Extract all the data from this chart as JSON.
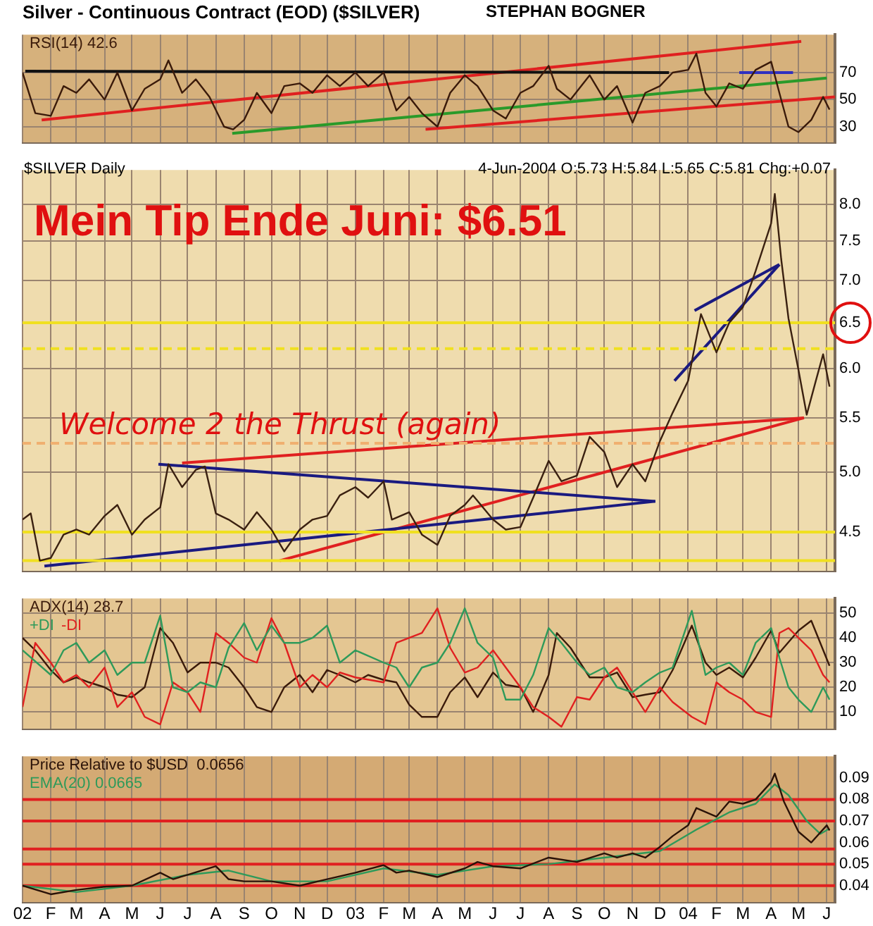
{
  "chart_data": [
    {
      "type": "line",
      "title": "Silver - Continuous Contract (EOD) ($SILVER)",
      "annotations": [
        "STEPHAN BOGNER"
      ],
      "legend": "top left",
      "grid": true,
      "marker": "none",
      "tick_labels": "y",
      "xlim": [
        "2002-01-01",
        "2004-06-10"
      ],
      "ylim": [
        18,
        98
      ],
      "yticks": [
        30,
        50,
        70
      ],
      "xticks": [
        {
          "value": "2002-01",
          "label": null
        },
        {
          "value": "2002-02",
          "label": null
        },
        {
          "value": "2002-03",
          "label": null
        },
        {
          "value": "2002-04",
          "label": null
        },
        {
          "value": "2002-05",
          "label": null
        },
        {
          "value": "2002-06",
          "label": null
        },
        {
          "value": "2002-07",
          "label": null
        },
        {
          "value": "2002-08",
          "label": null
        },
        {
          "value": "2002-09",
          "label": null
        },
        {
          "value": "2002-10",
          "label": null
        },
        {
          "value": "2002-11",
          "label": null
        },
        {
          "value": "2002-12",
          "label": null
        },
        {
          "value": "2003-01",
          "label": null
        },
        {
          "value": "2003-02",
          "label": null
        },
        {
          "value": "2003-03",
          "label": null
        },
        {
          "value": "2003-04",
          "label": null
        },
        {
          "value": "2003-05",
          "label": null
        },
        {
          "value": "2003-06",
          "label": null
        },
        {
          "value": "2003-07",
          "label": null
        },
        {
          "value": "2003-08",
          "label": null
        },
        {
          "value": "2003-09",
          "label": null
        },
        {
          "value": "2003-10",
          "label": null
        },
        {
          "value": "2003-11",
          "label": null
        },
        {
          "value": "2003-12",
          "label": null
        },
        {
          "value": "2004-01",
          "label": null
        },
        {
          "value": "2004-02",
          "label": null
        },
        {
          "value": "2004-03",
          "label": null
        },
        {
          "value": "2004-04",
          "label": null
        },
        {
          "value": "2004-05",
          "label": null
        },
        {
          "value": "2004-06",
          "label": null
        }
      ],
      "series": [
        {
          "name": "RSI(14) 42.6",
          "color": "#3a1a0a",
          "type": "line",
          "x": [
            "2002-01-01",
            "2002-01-15",
            "2002-02-01",
            "2002-02-15",
            "2002-03-01",
            "2002-03-15",
            "2002-04-01",
            "2002-04-15",
            "2002-05-01",
            "2002-05-15",
            "2002-06-01",
            "2002-06-10",
            "2002-06-25",
            "2002-07-10",
            "2002-07-25",
            "2002-08-10",
            "2002-08-20",
            "2002-09-01",
            "2002-09-15",
            "2002-10-01",
            "2002-10-15",
            "2002-11-01",
            "2002-11-15",
            "2002-12-01",
            "2002-12-15",
            "2003-01-01",
            "2003-01-15",
            "2003-02-01",
            "2003-02-15",
            "2003-03-01",
            "2003-03-15",
            "2003-04-01",
            "2003-04-15",
            "2003-05-01",
            "2003-05-15",
            "2003-06-01",
            "2003-06-15",
            "2003-07-01",
            "2003-07-15",
            "2003-08-01",
            "2003-08-10",
            "2003-08-25",
            "2003-09-15",
            "2003-10-01",
            "2003-10-15",
            "2003-11-01",
            "2003-11-15",
            "2003-12-01",
            "2003-12-15",
            "2004-01-01",
            "2004-01-10",
            "2004-01-20",
            "2004-02-01",
            "2004-02-15",
            "2004-03-01",
            "2004-03-15",
            "2004-04-01",
            "2004-04-10",
            "2004-04-20",
            "2004-05-01",
            "2004-05-15",
            "2004-05-28",
            "2004-06-04"
          ],
          "values": [
            70,
            40,
            38,
            60,
            55,
            65,
            50,
            70,
            42,
            58,
            65,
            79,
            55,
            65,
            52,
            30,
            28,
            35,
            55,
            40,
            60,
            62,
            55,
            68,
            60,
            70,
            60,
            70,
            42,
            52,
            40,
            30,
            55,
            68,
            60,
            42,
            36,
            55,
            60,
            75,
            58,
            50,
            68,
            50,
            60,
            33,
            55,
            60,
            70,
            72,
            84,
            55,
            45,
            62,
            58,
            72,
            78,
            55,
            30,
            26,
            35,
            52,
            42.6
          ]
        },
        {
          "color": "#111111",
          "type": "line",
          "x": [
            "2002-01-04",
            "2003-12-11"
          ],
          "values": [
            71,
            70
          ]
        },
        {
          "color": "#3030c0",
          "type": "line",
          "x": [
            "2004-02-26",
            "2004-04-25"
          ],
          "values": [
            70,
            70
          ]
        },
        {
          "color": "#e02020",
          "type": "line",
          "x": [
            "2002-01-22",
            "2004-05-04"
          ],
          "values": [
            35,
            93
          ]
        },
        {
          "color": "#2a9a2a",
          "type": "line",
          "x": [
            "2002-08-19",
            "2004-06-01"
          ],
          "values": [
            25,
            66
          ]
        },
        {
          "color": "#e02020",
          "type": "line",
          "x": [
            "2003-03-19",
            "2004-06-10"
          ],
          "values": [
            28,
            52
          ]
        }
      ]
    },
    {
      "type": "line",
      "title": "$SILVER Daily",
      "subtitle": "4-Jun-2004 O:5.73 H:5.84 L:5.65 C:5.81 Chg:+0.07",
      "annotations": [
        "Mein Tip Ende Juni: $6.51",
        "Welcome 2 the Thrust (again)"
      ],
      "grid": true,
      "marker": "none",
      "log": true,
      "tick_labels": "y",
      "xlim": [
        "2002-01-01",
        "2004-06-10"
      ],
      "ylim": [
        4.22,
        8.5
      ],
      "yticks": [
        {
          "value": 4.5,
          "label": "4.5"
        },
        {
          "value": 5,
          "label": "5.0"
        },
        {
          "value": 5.5,
          "label": "5.5"
        },
        {
          "value": 6,
          "label": "6.0"
        },
        {
          "value": 6.5,
          "label": "6.5"
        },
        {
          "value": 7,
          "label": "7.0"
        },
        {
          "value": 7.5,
          "label": "7.5"
        },
        {
          "value": 8,
          "label": "8.0"
        }
      ],
      "xticks": [
        {
          "value": "2002-01",
          "label": null
        },
        {
          "value": "2002-02",
          "label": null
        },
        {
          "value": "2002-03",
          "label": null
        },
        {
          "value": "2002-04",
          "label": null
        },
        {
          "value": "2002-05",
          "label": null
        },
        {
          "value": "2002-06",
          "label": null
        },
        {
          "value": "2002-07",
          "label": null
        },
        {
          "value": "2002-08",
          "label": null
        },
        {
          "value": "2002-09",
          "label": null
        },
        {
          "value": "2002-10",
          "label": null
        },
        {
          "value": "2002-11",
          "label": null
        },
        {
          "value": "2002-12",
          "label": null
        },
        {
          "value": "2003-01",
          "label": null
        },
        {
          "value": "2003-02",
          "label": null
        },
        {
          "value": "2003-03",
          "label": null
        },
        {
          "value": "2003-04",
          "label": null
        },
        {
          "value": "2003-05",
          "label": null
        },
        {
          "value": "2003-06",
          "label": null
        },
        {
          "value": "2003-07",
          "label": null
        },
        {
          "value": "2003-08",
          "label": null
        },
        {
          "value": "2003-09",
          "label": null
        },
        {
          "value": "2003-10",
          "label": null
        },
        {
          "value": "2003-11",
          "label": null
        },
        {
          "value": "2003-12",
          "label": null
        },
        {
          "value": "2004-01",
          "label": null
        },
        {
          "value": "2004-02",
          "label": null
        },
        {
          "value": "2004-03",
          "label": null
        },
        {
          "value": "2004-04",
          "label": null
        },
        {
          "value": "2004-05",
          "label": null
        },
        {
          "value": "2004-06",
          "label": null
        }
      ],
      "series": [
        {
          "color": "#f0e020",
          "type": "line",
          "x": [
            "2002-01-01",
            "2004-06-10"
          ],
          "values": [
            6.5,
            6.5
          ]
        },
        {
          "color": "#f0e020",
          "type": "line",
          "line_style": "dashed",
          "x": [
            "2002-01-01",
            "2004-06-10"
          ],
          "values": [
            6.21,
            6.21
          ]
        },
        {
          "color": "#f0b070",
          "type": "line",
          "line_style": "dashed",
          "x": [
            "2002-01-01",
            "2004-06-10"
          ],
          "values": [
            5.26,
            5.26
          ]
        },
        {
          "color": "#f0e020",
          "type": "line",
          "x": [
            "2002-01-01",
            "2004-06-10"
          ],
          "values": [
            4.5,
            4.5
          ]
        },
        {
          "color": "#f0e020",
          "type": "line",
          "x": [
            "2002-01-01",
            "2004-06-10"
          ],
          "values": [
            4.28,
            4.28
          ]
        },
        {
          "color": "#3a2010",
          "type": "line",
          "x": [
            "2002-01-01",
            "2002-01-10",
            "2002-01-20",
            "2002-02-01",
            "2002-02-15",
            "2002-03-01",
            "2002-03-15",
            "2002-04-01",
            "2002-04-15",
            "2002-05-01",
            "2002-05-15",
            "2002-06-01",
            "2002-06-10",
            "2002-06-25",
            "2002-07-10",
            "2002-07-20",
            "2002-08-01",
            "2002-08-15",
            "2002-09-01",
            "2002-09-15",
            "2002-10-01",
            "2002-10-15",
            "2002-11-01",
            "2002-11-15",
            "2002-12-01",
            "2002-12-15",
            "2003-01-01",
            "2003-01-15",
            "2003-02-01",
            "2003-02-10",
            "2003-03-01",
            "2003-03-15",
            "2003-04-01",
            "2003-04-15",
            "2003-05-01",
            "2003-05-10",
            "2003-06-01",
            "2003-06-15",
            "2003-07-01",
            "2003-07-15",
            "2003-08-01",
            "2003-08-15",
            "2003-09-01",
            "2003-09-15",
            "2003-10-01",
            "2003-10-15",
            "2003-11-01",
            "2003-11-15",
            "2003-12-01",
            "2003-12-15",
            "2004-01-01",
            "2004-01-15",
            "2004-02-01",
            "2004-02-15",
            "2004-03-01",
            "2004-03-15",
            "2004-04-01",
            "2004-04-05",
            "2004-04-12",
            "2004-04-20",
            "2004-05-01",
            "2004-05-10",
            "2004-05-20",
            "2004-05-28",
            "2004-06-04"
          ],
          "values": [
            4.6,
            4.65,
            4.28,
            4.3,
            4.48,
            4.52,
            4.48,
            4.63,
            4.72,
            4.48,
            4.6,
            4.7,
            5.07,
            4.87,
            5.02,
            5.05,
            4.65,
            4.6,
            4.52,
            4.66,
            4.52,
            4.35,
            4.52,
            4.6,
            4.63,
            4.8,
            4.87,
            4.78,
            4.92,
            4.6,
            4.66,
            4.48,
            4.4,
            4.63,
            4.72,
            4.8,
            4.6,
            4.52,
            4.54,
            4.78,
            5.1,
            4.92,
            4.97,
            5.32,
            5.18,
            4.87,
            5.07,
            4.92,
            5.28,
            5.55,
            5.87,
            6.6,
            6.17,
            6.5,
            6.68,
            7.12,
            7.74,
            8.15,
            7.27,
            6.55,
            5.98,
            5.53,
            5.87,
            6.15,
            5.81
          ]
        },
        {
          "color": "#1a1a80",
          "type": "line",
          "x": [
            "2002-01-25",
            "2003-11-26"
          ],
          "values": [
            4.24,
            4.75
          ]
        },
        {
          "color": "#1a1a80",
          "type": "line",
          "x": [
            "2002-05-30",
            "2003-11-26"
          ],
          "values": [
            5.07,
            4.75
          ]
        },
        {
          "color": "#e02020",
          "type": "line",
          "x": [
            "2002-06-25",
            "2004-05-07"
          ],
          "values": [
            5.08,
            5.5
          ]
        },
        {
          "color": "#e02020",
          "type": "line",
          "x": [
            "2002-10-10",
            "2004-05-07"
          ],
          "values": [
            4.28,
            5.5
          ]
        },
        {
          "color": "#1a1a80",
          "type": "line",
          "x": [
            "2004-01-08",
            "2004-04-10"
          ],
          "values": [
            6.64,
            7.2
          ]
        },
        {
          "color": "#1a1a80",
          "type": "line",
          "x": [
            "2003-12-17",
            "2004-04-10"
          ],
          "values": [
            5.87,
            7.2
          ]
        }
      ]
    },
    {
      "type": "line",
      "legend": "top left",
      "grid": true,
      "marker": "none",
      "tick_labels": "y",
      "xlim": [
        "2002-01-01",
        "2004-06-10"
      ],
      "ylim": [
        3,
        56
      ],
      "yticks": [
        10,
        20,
        30,
        40,
        50
      ],
      "xticks": [
        {
          "value": "2002-01",
          "label": null
        },
        {
          "value": "2002-02",
          "label": null
        },
        {
          "value": "2002-03",
          "label": null
        },
        {
          "value": "2002-04",
          "label": null
        },
        {
          "value": "2002-05",
          "label": null
        },
        {
          "value": "2002-06",
          "label": null
        },
        {
          "value": "2002-07",
          "label": null
        },
        {
          "value": "2002-08",
          "label": null
        },
        {
          "value": "2002-09",
          "label": null
        },
        {
          "value": "2002-10",
          "label": null
        },
        {
          "value": "2002-11",
          "label": null
        },
        {
          "value": "2002-12",
          "label": null
        },
        {
          "value": "2003-01",
          "label": null
        },
        {
          "value": "2003-02",
          "label": null
        },
        {
          "value": "2003-03",
          "label": null
        },
        {
          "value": "2003-04",
          "label": null
        },
        {
          "value": "2003-05",
          "label": null
        },
        {
          "value": "2003-06",
          "label": null
        },
        {
          "value": "2003-07",
          "label": null
        },
        {
          "value": "2003-08",
          "label": null
        },
        {
          "value": "2003-09",
          "label": null
        },
        {
          "value": "2003-10",
          "label": null
        },
        {
          "value": "2003-11",
          "label": null
        },
        {
          "value": "2003-12",
          "label": null
        },
        {
          "value": "2004-01",
          "label": null
        },
        {
          "value": "2004-02",
          "label": null
        },
        {
          "value": "2004-03",
          "label": null
        },
        {
          "value": "2004-04",
          "label": null
        },
        {
          "value": "2004-05",
          "label": null
        },
        {
          "value": "2004-06",
          "label": null
        }
      ],
      "series": [
        {
          "name": "+DI",
          "color": "#2e9a5a",
          "type": "line",
          "x": [
            "2002-01-01",
            "2002-02-01",
            "2002-02-15",
            "2002-03-01",
            "2002-03-15",
            "2002-04-01",
            "2002-04-15",
            "2002-05-01",
            "2002-05-15",
            "2002-06-01",
            "2002-06-15",
            "2002-07-01",
            "2002-07-15",
            "2002-08-01",
            "2002-08-15",
            "2002-09-01",
            "2002-09-15",
            "2002-10-01",
            "2002-10-15",
            "2002-11-01",
            "2002-11-15",
            "2002-12-01",
            "2002-12-15",
            "2003-01-01",
            "2003-02-01",
            "2003-02-15",
            "2003-03-01",
            "2003-03-15",
            "2003-04-01",
            "2003-04-15",
            "2003-05-01",
            "2003-05-15",
            "2003-06-01",
            "2003-06-15",
            "2003-07-01",
            "2003-07-15",
            "2003-08-01",
            "2003-08-15",
            "2003-09-01",
            "2003-09-15",
            "2003-10-01",
            "2003-10-15",
            "2003-11-01",
            "2003-11-15",
            "2003-12-01",
            "2003-12-15",
            "2004-01-05",
            "2004-01-20",
            "2004-02-01",
            "2004-02-15",
            "2004-03-01",
            "2004-03-15",
            "2004-04-01",
            "2004-04-10",
            "2004-04-20",
            "2004-05-01",
            "2004-05-15",
            "2004-05-28",
            "2004-06-04"
          ],
          "values": [
            35,
            25,
            35,
            38,
            30,
            35,
            25,
            30,
            30,
            49,
            20,
            18,
            22,
            20,
            36,
            46,
            35,
            45,
            38,
            38,
            40,
            45,
            30,
            35,
            30,
            28,
            20,
            28,
            30,
            38,
            52,
            38,
            32,
            15,
            15,
            25,
            44,
            38,
            30,
            25,
            28,
            20,
            18,
            22,
            26,
            28,
            51,
            25,
            28,
            30,
            25,
            38,
            44,
            32,
            20,
            15,
            10,
            20,
            15
          ]
        },
        {
          "name": "-DI",
          "color": "#e02020",
          "type": "line",
          "x": [
            "2002-01-01",
            "2002-01-15",
            "2002-02-01",
            "2002-02-15",
            "2002-03-01",
            "2002-03-15",
            "2002-04-01",
            "2002-04-15",
            "2002-05-01",
            "2002-05-15",
            "2002-06-01",
            "2002-06-15",
            "2002-07-01",
            "2002-07-15",
            "2002-08-01",
            "2002-08-15",
            "2002-09-01",
            "2002-09-15",
            "2002-10-01",
            "2002-10-15",
            "2002-11-01",
            "2002-11-15",
            "2002-12-01",
            "2002-12-15",
            "2003-01-01",
            "2003-02-01",
            "2003-02-15",
            "2003-03-01",
            "2003-03-15",
            "2003-04-01",
            "2003-04-15",
            "2003-05-01",
            "2003-05-15",
            "2003-06-01",
            "2003-06-15",
            "2003-07-01",
            "2003-07-15",
            "2003-08-01",
            "2003-08-15",
            "2003-09-01",
            "2003-09-15",
            "2003-10-01",
            "2003-10-15",
            "2003-11-01",
            "2003-11-15",
            "2003-12-01",
            "2003-12-15",
            "2004-01-05",
            "2004-01-20",
            "2004-02-01",
            "2004-02-15",
            "2004-03-01",
            "2004-03-15",
            "2004-04-01",
            "2004-04-10",
            "2004-04-20",
            "2004-05-01",
            "2004-05-15",
            "2004-05-28",
            "2004-06-04"
          ],
          "values": [
            12,
            38,
            30,
            22,
            25,
            20,
            28,
            12,
            18,
            8,
            5,
            22,
            18,
            10,
            42,
            38,
            32,
            30,
            48,
            38,
            20,
            25,
            20,
            26,
            24,
            22,
            38,
            40,
            42,
            52,
            36,
            26,
            28,
            35,
            28,
            20,
            12,
            8,
            4,
            16,
            15,
            24,
            28,
            18,
            10,
            20,
            14,
            8,
            5,
            22,
            18,
            15,
            10,
            8,
            42,
            44,
            40,
            35,
            25,
            22
          ]
        },
        {
          "name": "ADX(14) 28.7",
          "color": "#3a1a0a",
          "type": "line",
          "x": [
            "2002-01-01",
            "2002-01-15",
            "2002-02-01",
            "2002-02-15",
            "2002-03-01",
            "2002-03-15",
            "2002-04-01",
            "2002-04-15",
            "2002-05-01",
            "2002-05-15",
            "2002-06-01",
            "2002-06-15",
            "2002-07-01",
            "2002-07-15",
            "2002-08-01",
            "2002-08-15",
            "2002-09-01",
            "2002-09-15",
            "2002-10-01",
            "2002-10-15",
            "2002-11-01",
            "2002-11-15",
            "2002-12-01",
            "2002-12-15",
            "2003-01-01",
            "2003-01-15",
            "2003-02-01",
            "2003-02-15",
            "2003-03-01",
            "2003-03-15",
            "2003-04-01",
            "2003-04-15",
            "2003-05-01",
            "2003-05-15",
            "2003-06-01",
            "2003-06-15",
            "2003-07-01",
            "2003-07-15",
            "2003-08-01",
            "2003-08-10",
            "2003-08-25",
            "2003-09-15",
            "2003-10-01",
            "2003-10-15",
            "2003-11-01",
            "2003-11-15",
            "2003-12-01",
            "2003-12-15",
            "2004-01-05",
            "2004-01-20",
            "2004-02-01",
            "2004-02-15",
            "2004-03-01",
            "2004-03-15",
            "2004-04-01",
            "2004-04-10",
            "2004-05-01",
            "2004-05-15",
            "2004-06-04"
          ],
          "values": [
            40,
            35,
            27,
            22,
            24,
            22,
            20,
            17,
            16,
            20,
            44,
            38,
            26,
            30,
            30,
            28,
            20,
            12,
            10,
            20,
            25,
            18,
            27,
            25,
            22,
            25,
            23,
            22,
            13,
            8,
            8,
            18,
            24,
            16,
            26,
            21,
            20,
            10,
            25,
            42,
            36,
            24,
            24,
            26,
            16,
            17,
            18,
            27,
            45,
            30,
            25,
            28,
            24,
            32,
            43,
            34,
            43,
            47,
            28.7
          ]
        }
      ]
    },
    {
      "type": "line",
      "legend": "top left",
      "grid": "x",
      "marker": "none",
      "xlim": [
        "2002-01-01",
        "2004-06-10"
      ],
      "ylim": [
        0.032,
        0.1
      ],
      "yticks": [
        {
          "value": 0.04,
          "label": "0.04"
        },
        {
          "value": 0.05,
          "label": "0.05"
        },
        {
          "value": 0.06,
          "label": "0.06"
        },
        {
          "value": 0.07,
          "label": "0.07"
        },
        {
          "value": 0.08,
          "label": "0.08"
        },
        {
          "value": 0.09,
          "label": "0.09"
        }
      ],
      "xticks": [
        {
          "value": "2002-01",
          "label": "02"
        },
        {
          "value": "2002-02",
          "label": "F"
        },
        {
          "value": "2002-03",
          "label": "M"
        },
        {
          "value": "2002-04",
          "label": "A"
        },
        {
          "value": "2002-05",
          "label": "M"
        },
        {
          "value": "2002-06",
          "label": "J"
        },
        {
          "value": "2002-07",
          "label": "J"
        },
        {
          "value": "2002-08",
          "label": "A"
        },
        {
          "value": "2002-09",
          "label": "S"
        },
        {
          "value": "2002-10",
          "label": "O"
        },
        {
          "value": "2002-11",
          "label": "N"
        },
        {
          "value": "2002-12",
          "label": "D"
        },
        {
          "value": "2003-01",
          "label": "03"
        },
        {
          "value": "2003-02",
          "label": "F"
        },
        {
          "value": "2003-03",
          "label": "M"
        },
        {
          "value": "2003-04",
          "label": "A"
        },
        {
          "value": "2003-05",
          "label": "M"
        },
        {
          "value": "2003-06",
          "label": "J"
        },
        {
          "value": "2003-07",
          "label": "J"
        },
        {
          "value": "2003-08",
          "label": "A"
        },
        {
          "value": "2003-09",
          "label": "S"
        },
        {
          "value": "2003-10",
          "label": "O"
        },
        {
          "value": "2003-11",
          "label": "N"
        },
        {
          "value": "2003-12",
          "label": "D"
        },
        {
          "value": "2004-01",
          "label": "04"
        },
        {
          "value": "2004-02",
          "label": "F"
        },
        {
          "value": "2004-03",
          "label": "M"
        },
        {
          "value": "2004-04",
          "label": "A"
        },
        {
          "value": "2004-05",
          "label": "M"
        },
        {
          "value": "2004-06",
          "label": "J"
        }
      ],
      "series": [
        {
          "color": "#e02020",
          "type": "line",
          "x": [
            "2002-01-01",
            "2004-06-10"
          ],
          "values": [
            0.04,
            0.04
          ]
        },
        {
          "color": "#e02020",
          "type": "line",
          "x": [
            "2002-01-01",
            "2004-06-10"
          ],
          "values": [
            0.05,
            0.05
          ]
        },
        {
          "color": "#e02020",
          "type": "line",
          "x": [
            "2002-01-01",
            "2004-06-10"
          ],
          "values": [
            0.057,
            0.057
          ]
        },
        {
          "color": "#e02020",
          "type": "line",
          "x": [
            "2002-01-01",
            "2004-06-10"
          ],
          "values": [
            0.07,
            0.07
          ]
        },
        {
          "color": "#e02020",
          "type": "line",
          "x": [
            "2002-01-01",
            "2004-06-10"
          ],
          "values": [
            0.08,
            0.08
          ]
        },
        {
          "name": "Price Relative to $USD  0.0656",
          "color": "#2a1208",
          "type": "line",
          "x": [
            "2002-01-01",
            "2002-02-01",
            "2002-03-01",
            "2002-04-01",
            "2002-05-01",
            "2002-06-01",
            "2002-06-15",
            "2002-07-01",
            "2002-08-01",
            "2002-08-15",
            "2002-09-01",
            "2002-10-01",
            "2002-11-01",
            "2002-12-01",
            "2003-01-01",
            "2003-02-01",
            "2003-02-15",
            "2003-03-01",
            "2003-04-01",
            "2003-05-01",
            "2003-05-15",
            "2003-06-01",
            "2003-07-01",
            "2003-08-01",
            "2003-09-01",
            "2003-10-01",
            "2003-10-15",
            "2003-11-01",
            "2003-11-15",
            "2003-12-01",
            "2003-12-15",
            "2004-01-01",
            "2004-01-10",
            "2004-02-01",
            "2004-02-15",
            "2004-03-01",
            "2004-03-15",
            "2004-04-01",
            "2004-04-05",
            "2004-04-15",
            "2004-05-01",
            "2004-05-15",
            "2004-06-01",
            "2004-06-04"
          ],
          "values": [
            0.04,
            0.036,
            0.038,
            0.0395,
            0.04,
            0.046,
            0.043,
            0.045,
            0.049,
            0.043,
            0.042,
            0.042,
            0.04,
            0.043,
            0.046,
            0.0495,
            0.046,
            0.047,
            0.044,
            0.048,
            0.051,
            0.049,
            0.048,
            0.053,
            0.051,
            0.055,
            0.053,
            0.055,
            0.053,
            0.058,
            0.063,
            0.068,
            0.076,
            0.072,
            0.079,
            0.078,
            0.08,
            0.088,
            0.092,
            0.079,
            0.065,
            0.06,
            0.068,
            0.0656
          ]
        },
        {
          "name": "EMA(20) 0.0665",
          "color": "#2e9a5a",
          "type": "line",
          "x": [
            "2002-01-01",
            "2002-03-01",
            "2002-05-01",
            "2002-07-01",
            "2002-08-15",
            "2002-10-01",
            "2002-12-01",
            "2003-02-01",
            "2003-04-01",
            "2003-06-01",
            "2003-08-01",
            "2003-10-01",
            "2003-12-01",
            "2004-01-10",
            "2004-02-15",
            "2004-03-15",
            "2004-04-05",
            "2004-04-20",
            "2004-05-10",
            "2004-05-25",
            "2004-06-04"
          ],
          "values": [
            0.04,
            0.037,
            0.04,
            0.045,
            0.047,
            0.042,
            0.042,
            0.048,
            0.045,
            0.049,
            0.05,
            0.053,
            0.056,
            0.066,
            0.074,
            0.078,
            0.087,
            0.082,
            0.07,
            0.064,
            0.0665
          ]
        }
      ]
    }
  ]
}
